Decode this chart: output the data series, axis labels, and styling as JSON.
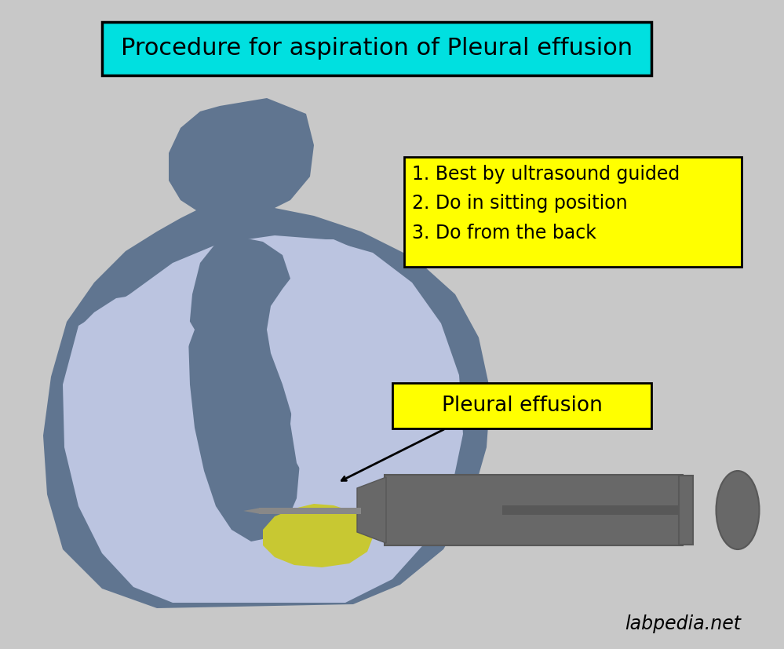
{
  "background_color": "#c8c8c8",
  "title_text": "Procedure for aspiration of Pleural effusion",
  "title_bg": "#00e0e0",
  "title_border": "#000000",
  "body_color": "#607590",
  "chest_color": "#bbc4e0",
  "lung_color": "#607590",
  "effusion_color": "#c8c832",
  "syringe_color": "#686868",
  "syringe_dark": "#585858",
  "needle_color": "#888888",
  "steps_bg": "#ffff00",
  "steps_border": "#000000",
  "steps_text": "1. Best by ultrasound guided\n2. Do in sitting position\n3. Do from the back",
  "effusion_label": "Pleural effusion",
  "effusion_label_bg": "#ffff00",
  "watermark": "labpedia.net"
}
